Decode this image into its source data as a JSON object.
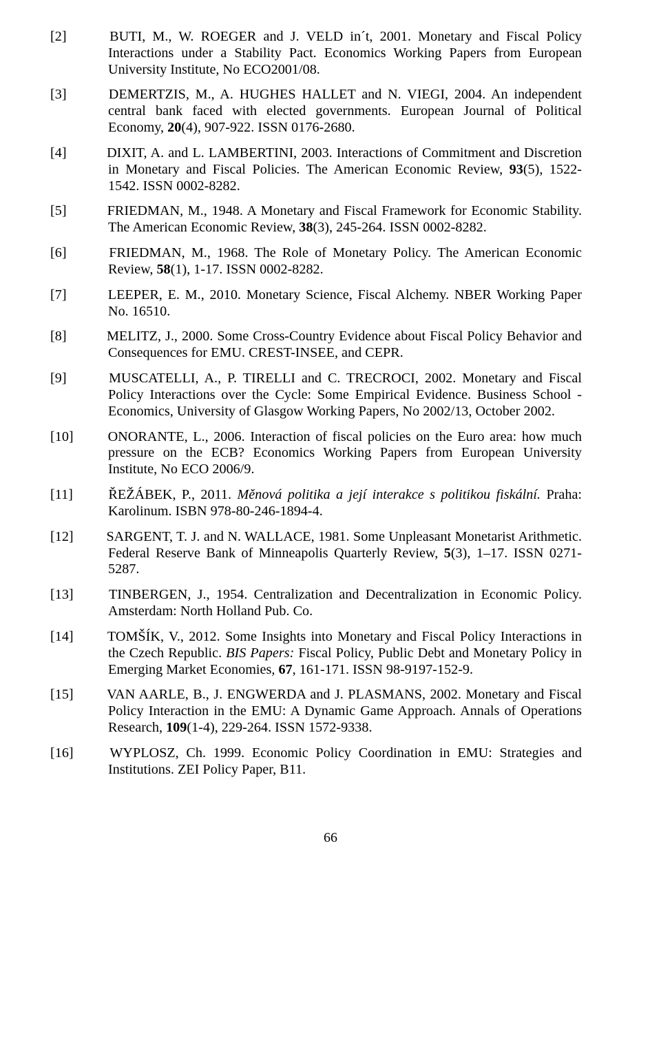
{
  "page_number": "66",
  "font": {
    "family": "Times New Roman",
    "size_pt": 12,
    "color": "#000000"
  },
  "background_color": "#ffffff",
  "references": [
    {
      "num": "[2]",
      "html": "BUTI, M., W. ROEGER and J. VELD in´t, 2001. Monetary and Fiscal Policy Interactions under a Stability Pact. Economics Working Papers from European University Institute, No ECO2001/08."
    },
    {
      "num": "[3]",
      "html": "DEMERTZIS, M., A. HUGHES HALLET and N. VIEGI, 2004. An independent central bank faced with elected governments. European Journal of Political Economy, <b>20</b>(4), 907-922. ISSN 0176-2680."
    },
    {
      "num": "[4]",
      "html": "DIXIT, A. and L. LAMBERTINI, 2003. Interactions of Commitment and Discretion in Monetary and Fiscal Policies. The American Economic Review, <b>93</b>(5), 1522-1542. ISSN 0002-8282."
    },
    {
      "num": "[5]",
      "html": "FRIEDMAN, M., 1948. A Monetary and Fiscal Framework for Economic Stability. The American Economic Review, <b>38</b>(3), 245-264. ISSN 0002-8282."
    },
    {
      "num": "[6]",
      "html": "FRIEDMAN, M., 1968. The Role of Monetary Policy. The American Economic Review, <b>58</b>(1), 1-17. ISSN 0002-8282."
    },
    {
      "num": "[7]",
      "html": "LEEPER, E. M., 2010. Monetary Science, Fiscal Alchemy. NBER Working Paper No. 16510."
    },
    {
      "num": "[8]",
      "html": "MELITZ, J., 2000. Some Cross-Country Evidence about Fiscal Policy Behavior and Consequences for EMU. CREST-INSEE, and CEPR."
    },
    {
      "num": "[9]",
      "html": "MUSCATELLI, A., P. TIRELLI and C. TRECROCI, 2002. Monetary and Fiscal Policy Interactions over the Cycle: Some Empirical Evidence. Business School - Economics, University of Glasgow Working Papers, No 2002/13, October 2002."
    },
    {
      "num": "[10]",
      "html": "ONORANTE, L., 2006. Interaction of fiscal policies on the Euro area: how much pressure on the ECB? Economics Working Papers from European University Institute, No ECO 2006/9."
    },
    {
      "num": "[11]",
      "html": "ŘEŽÁBEK, P., 2011. <i>Měnová politika a její interakce s politikou fiskální.</i> Praha: Karolinum. ISBN 978-80-246-1894-4."
    },
    {
      "num": "[12]",
      "html": "SARGENT, T. J. and N. WALLACE, 1981. Some Unpleasant Monetarist Arithmetic. Federal Reserve Bank of Minneapolis Quarterly Review, <b>5</b>(3), 1–17. ISSN 0271-5287."
    },
    {
      "num": "[13]",
      "html": "TINBERGEN, J., 1954. Centralization and Decentralization in Economic Policy. Amsterdam: North Holland Pub. Co."
    },
    {
      "num": "[14]",
      "html": "TOMŠÍK, V., 2012. Some Insights into Monetary and Fiscal Policy Interactions in the Czech Republic. <i>BIS Papers:</i> Fiscal Policy, Public Debt and Monetary Policy in Emerging Market Economies<i>,</i> <b>67</b>, 161-171. ISSN 98-9197-152-9."
    },
    {
      "num": "[15]",
      "html": "VAN AARLE, B., J. ENGWERDA and J. PLASMANS, 2002. Monetary and Fiscal Policy Interaction in the EMU: A Dynamic Game Approach. Annals of Operations Research, <b>109</b>(1-4), 229-264. ISSN 1572-9338."
    },
    {
      "num": "[16]",
      "html": "WYPLOSZ, Ch. 1999. Economic Policy Coordination in EMU: Strategies and Institutions. ZEI Policy Paper, B11."
    }
  ]
}
